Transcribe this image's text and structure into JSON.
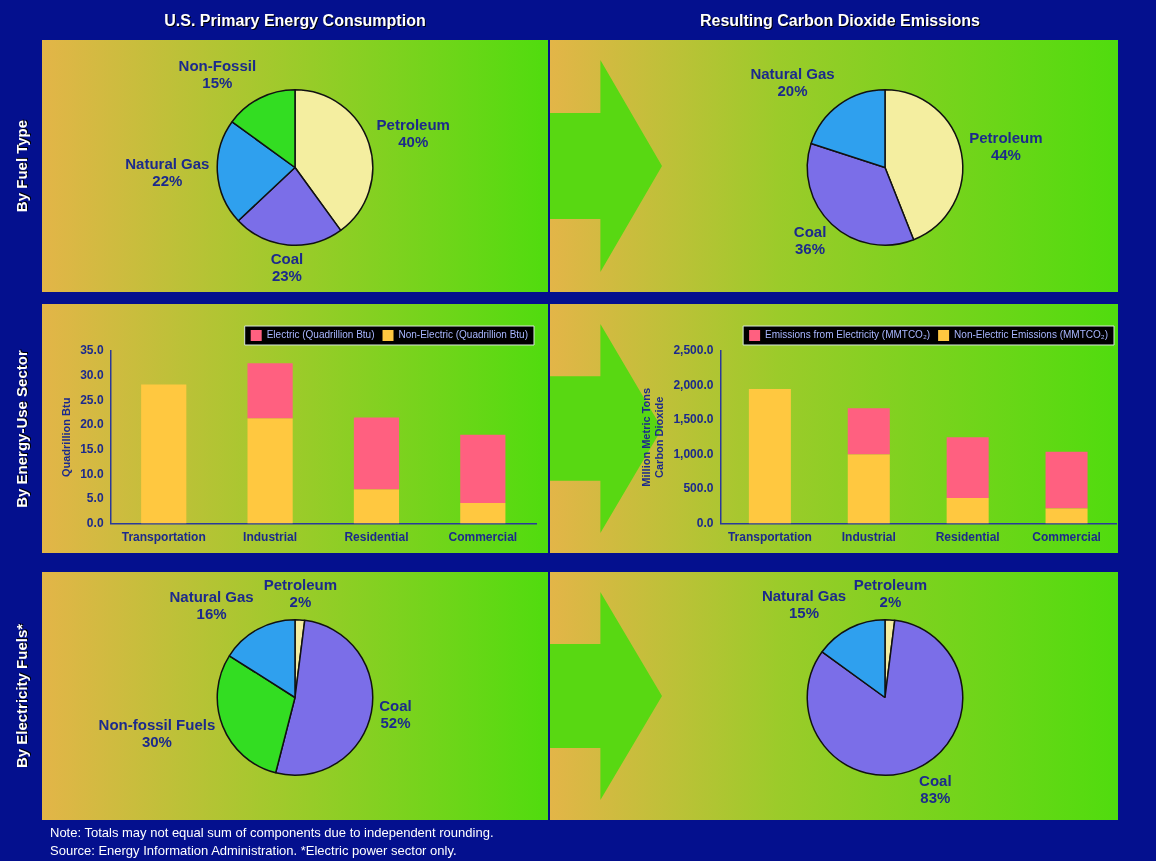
{
  "chart_data": [
    {
      "type": "pie",
      "title": "U.S. Primary Energy Consumption",
      "subtitle": "By Fuel Type",
      "categories": [
        "Petroleum",
        "Coal",
        "Natural Gas",
        "Non-Fossil"
      ],
      "values": [
        40,
        23,
        22,
        15
      ],
      "colors": [
        "#f4eea0",
        "#7b6ee8",
        "#2fa0ee",
        "#33dd22"
      ],
      "value_labels": [
        "40%",
        "23%",
        "22%",
        "15%"
      ]
    },
    {
      "type": "pie",
      "title": "Resulting Carbon Dioxide Emissions",
      "categories": [
        "Petroleum",
        "Coal",
        "Natural Gas"
      ],
      "values": [
        44,
        36,
        20
      ],
      "colors": [
        "#f4eea0",
        "#7b6ee8",
        "#2fa0ee"
      ],
      "value_labels": [
        "44%",
        "36%",
        "20%"
      ]
    },
    {
      "type": "bar",
      "subtitle": "By Energy-Use Sector",
      "stacked": true,
      "legend": "top right",
      "ylabel": "Quadrillion Btu",
      "categories": [
        "Transportation",
        "Industrial",
        "Residential",
        "Commercial"
      ],
      "series": [
        {
          "name": "Non-Electric (Quadrillion Btu)",
          "color": "#ffc840",
          "values": [
            28.2,
            21.3,
            6.9,
            4.2
          ]
        },
        {
          "name": "Electric (Quadrillion Btu)",
          "color": "#ff6080",
          "values": [
            0,
            11.2,
            14.6,
            13.8
          ]
        }
      ],
      "ylim": [
        0,
        35
      ],
      "yticks": [
        {
          "value": 0,
          "label": "0.0"
        },
        {
          "value": 5,
          "label": "5.0"
        },
        {
          "value": 10,
          "label": "10.0"
        },
        {
          "value": 15,
          "label": "15.0"
        },
        {
          "value": 20,
          "label": "20.0"
        },
        {
          "value": 25,
          "label": "25.0"
        },
        {
          "value": 30,
          "label": "30.0"
        },
        {
          "value": 35,
          "label": "35.0"
        }
      ]
    },
    {
      "type": "bar",
      "stacked": true,
      "legend": "top right",
      "ylabel": "Million Metric Tons Carbon Dioxide",
      "categories": [
        "Transportation",
        "Industrial",
        "Residential",
        "Commercial"
      ],
      "series": [
        {
          "name": "Non-Electric Emissions (MMTCO₂)",
          "color": "#ffc840",
          "values": [
            1950,
            1000,
            370,
            220
          ]
        },
        {
          "name": "Emissions from Electricity (MMTCO₂)",
          "color": "#ff6080",
          "values": [
            0,
            670,
            880,
            820
          ]
        }
      ],
      "ylim": [
        0,
        2500
      ],
      "yticks": [
        {
          "value": 0,
          "label": "0.0"
        },
        {
          "value": 500,
          "label": "500.0"
        },
        {
          "value": 1000,
          "label": "1,000.0"
        },
        {
          "value": 1500,
          "label": "1,500.0"
        },
        {
          "value": 2000,
          "label": "2,000.0"
        },
        {
          "value": 2500,
          "label": "2,500.0"
        }
      ]
    },
    {
      "type": "pie",
      "subtitle": "By Electricity Fuels*",
      "categories": [
        "Petroleum",
        "Coal",
        "Non-fossil Fuels",
        "Natural Gas"
      ],
      "values": [
        2,
        52,
        30,
        16
      ],
      "colors": [
        "#f4eea0",
        "#7b6ee8",
        "#33dd22",
        "#2fa0ee"
      ],
      "value_labels": [
        "2%",
        "52%",
        "30%",
        "16%"
      ]
    },
    {
      "type": "pie",
      "categories": [
        "Petroleum",
        "Coal",
        "Natural Gas"
      ],
      "values": [
        2,
        83,
        15
      ],
      "colors": [
        "#f4eea0",
        "#7b6ee8",
        "#2fa0ee"
      ],
      "value_labels": [
        "2%",
        "83%",
        "15%"
      ],
      "annotations": [
        "Note: Totals may not equal sum of components due to independent rounding.",
        "Source: Energy Information Administration. *Electric power sector only."
      ]
    }
  ]
}
